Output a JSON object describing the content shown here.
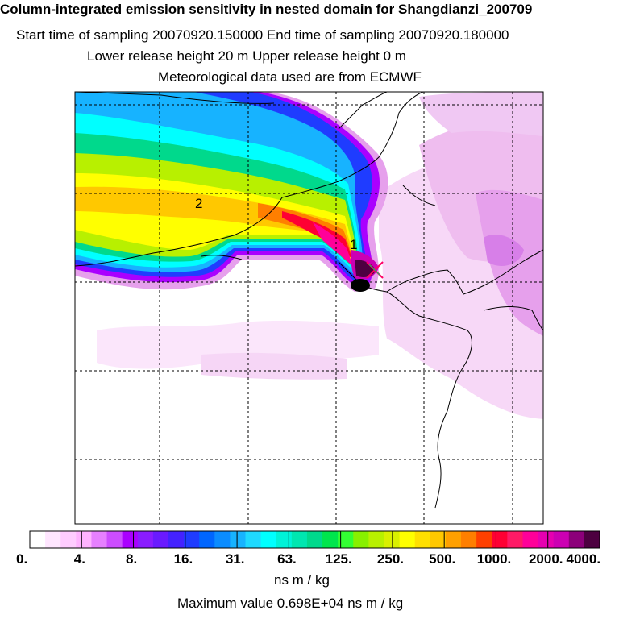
{
  "header": {
    "title": "Column-integrated emission sensitivity in nested domain for Shangdianzi_200709",
    "sampling_line": "Start time of sampling 20070920.150000     End time of sampling 20070920.180000",
    "release_line": "Lower release height   20 m          Upper release height    0 m",
    "met_line": "Meteorological data used are from ECMWF"
  },
  "map": {
    "point_labels": [
      "1",
      "2"
    ],
    "station_marker": "station-x-icon"
  },
  "colorbar": {
    "tick_labels": [
      "0.",
      "4.",
      "8.",
      "16.",
      "31.",
      "63.",
      "125.",
      "250.",
      "500.",
      "1000.",
      "2000.",
      "4000."
    ],
    "units": "ns m / kg",
    "colors": [
      "#ffffff",
      "#ffe6ff",
      "#ffccff",
      "#ffb3ff",
      "#e680ff",
      "#cc4dff",
      "#aa00ff",
      "#8a1cff",
      "#6a1aff",
      "#4422ff",
      "#1f3cff",
      "#0066ff",
      "#0b8cff",
      "#17b3ff",
      "#1fd9ff",
      "#00ffff",
      "#00f2d8",
      "#00e6b0",
      "#00d98c",
      "#00e64d",
      "#33ff33",
      "#88f000",
      "#b8f000",
      "#d9f000",
      "#ffff00",
      "#ffe000",
      "#ffc800",
      "#ffa000",
      "#ff7f00",
      "#ff4000",
      "#ff0033",
      "#ff1a66",
      "#ff0099",
      "#e600b0",
      "#cc00b3",
      "#8c007a",
      "#4d0040"
    ]
  },
  "footer": {
    "max_value": "Maximum value  0.698E+04 ns m / kg"
  }
}
